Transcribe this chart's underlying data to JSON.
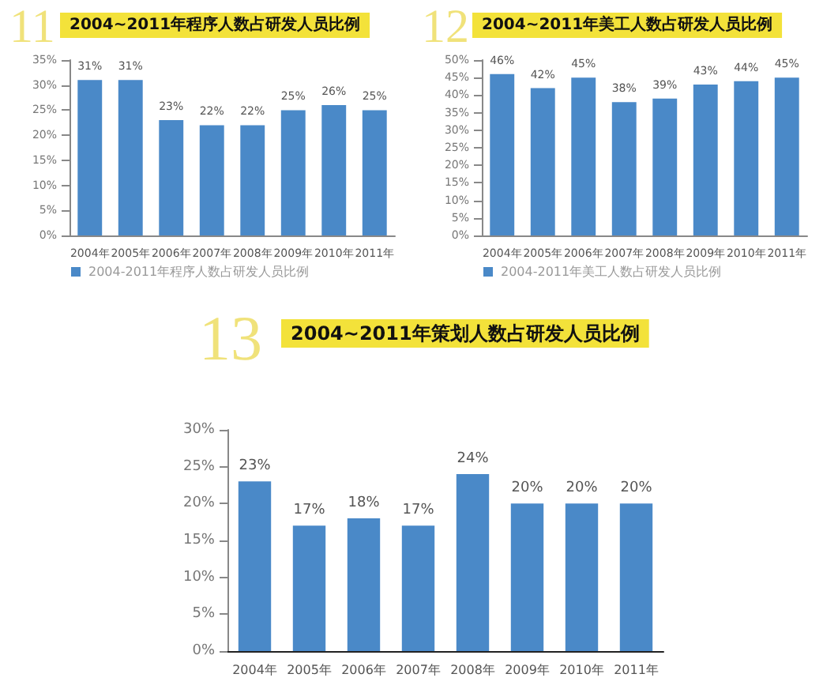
{
  "chart_data": [
    {
      "type": "bar",
      "title": "2004~2011年程序人数占研发人员比例",
      "annotations": [
        "11"
      ],
      "categories": [
        "2004年",
        "2005年",
        "2006年",
        "2007年",
        "2008年",
        "2009年",
        "2010年",
        "2011年"
      ],
      "series": [
        {
          "name": "2004-2011年程序人数占研发人员比例",
          "color": "#4a89c8",
          "values": [
            31,
            31,
            23,
            22,
            22,
            25,
            26,
            25
          ],
          "value_labels": [
            "31%",
            "31%",
            "23%",
            "22%",
            "22%",
            "25%",
            "26%",
            "25%"
          ]
        }
      ],
      "ylim": [
        0,
        35
      ],
      "yticks": [
        {
          "value": 0,
          "label": "0%"
        },
        {
          "value": 5,
          "label": "5%"
        },
        {
          "value": 10,
          "label": "10%"
        },
        {
          "value": 15,
          "label": "15%"
        },
        {
          "value": 20,
          "label": "20%"
        },
        {
          "value": 25,
          "label": "25%"
        },
        {
          "value": 30,
          "label": "30%"
        },
        {
          "value": 35,
          "label": "35%"
        }
      ],
      "grid": false,
      "legend": "bottom left"
    },
    {
      "type": "bar",
      "title": "2004~2011年美工人数占研发人员比例",
      "annotations": [
        "12"
      ],
      "categories": [
        "2004年",
        "2005年",
        "2006年",
        "2007年",
        "2008年",
        "2009年",
        "2010年",
        "2011年"
      ],
      "series": [
        {
          "name": "2004-2011年美工人数占研发人员比例",
          "color": "#4a89c8",
          "values": [
            46,
            42,
            45,
            38,
            39,
            43,
            44,
            45
          ],
          "value_labels": [
            "46%",
            "42%",
            "45%",
            "38%",
            "39%",
            "43%",
            "44%",
            "45%"
          ]
        }
      ],
      "ylim": [
        0,
        50
      ],
      "yticks": [
        {
          "value": 0,
          "label": "0%"
        },
        {
          "value": 5,
          "label": "5%"
        },
        {
          "value": 10,
          "label": "10%"
        },
        {
          "value": 15,
          "label": "15%"
        },
        {
          "value": 20,
          "label": "20%"
        },
        {
          "value": 25,
          "label": "25%"
        },
        {
          "value": 30,
          "label": "30%"
        },
        {
          "value": 35,
          "label": "35%"
        },
        {
          "value": 40,
          "label": "40%"
        },
        {
          "value": 45,
          "label": "45%"
        },
        {
          "value": 50,
          "label": "50%"
        }
      ],
      "grid": false,
      "legend": "bottom left"
    },
    {
      "type": "bar",
      "title": "2004~2011年策划人数占研发人员比例",
      "annotations": [
        "13"
      ],
      "categories": [
        "2004年",
        "2005年",
        "2006年",
        "2007年",
        "2008年",
        "2009年",
        "2010年",
        "2011年"
      ],
      "series": [
        {
          "color": "#4a89c8",
          "values": [
            23,
            17,
            18,
            17,
            24,
            20,
            20,
            20
          ],
          "value_labels": [
            "23%",
            "17%",
            "18%",
            "17%",
            "24%",
            "20%",
            "20%",
            "20%"
          ]
        }
      ],
      "ylim": [
        0,
        30
      ],
      "yticks": [
        {
          "value": 0,
          "label": "0%"
        },
        {
          "value": 5,
          "label": "5%"
        },
        {
          "value": 10,
          "label": "10%"
        },
        {
          "value": 15,
          "label": "15%"
        },
        {
          "value": 20,
          "label": "20%"
        },
        {
          "value": 25,
          "label": "25%"
        },
        {
          "value": 30,
          "label": "30%"
        }
      ],
      "grid": false,
      "legend": false
    }
  ]
}
